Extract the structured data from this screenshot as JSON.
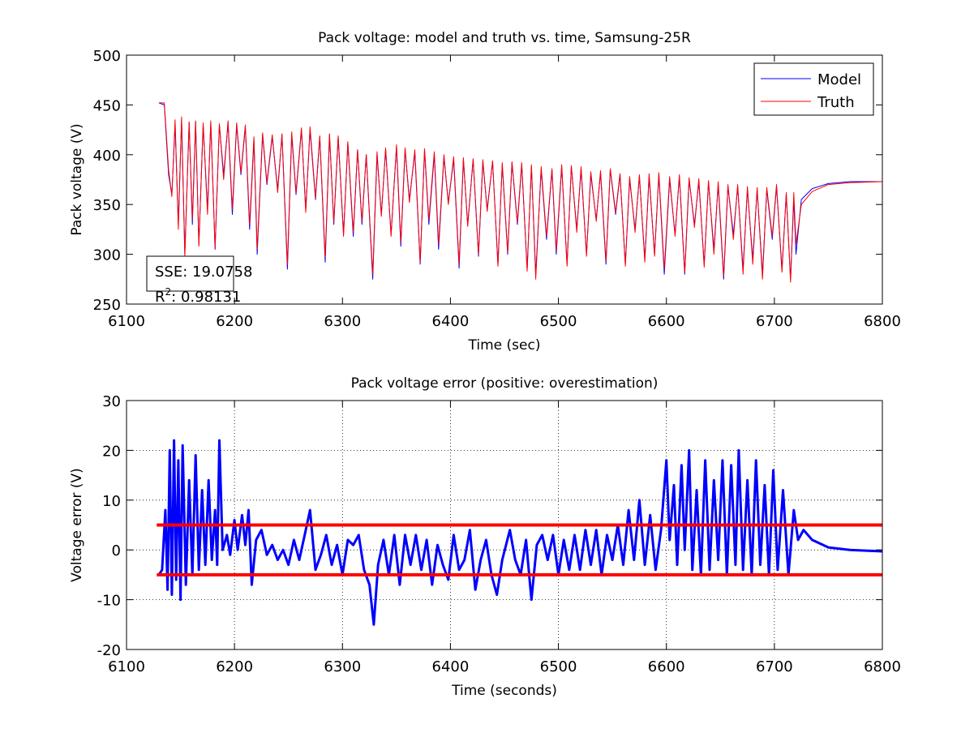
{
  "chart_data": [
    {
      "type": "line",
      "title": "Pack voltage: model and truth vs. time, Samsung-25R",
      "xlabel": "Time (sec)",
      "ylabel": "Pack voltage (V)",
      "xlim": [
        6100,
        6800
      ],
      "xticks": [
        6100,
        6200,
        6300,
        6400,
        6500,
        6600,
        6700,
        6800
      ],
      "ylim": [
        250,
        500
      ],
      "yticks": [
        250,
        300,
        350,
        400,
        450,
        500
      ],
      "grid": false,
      "legend": "upper right",
      "annotation": {
        "sse": "SSE: 19.0758",
        "r2_base": "R",
        "r2_sup": "2",
        "r2_rest": ": 0.98131"
      },
      "x": [
        6130,
        6135,
        6139,
        6142,
        6145,
        6148,
        6151,
        6154,
        6158,
        6161,
        6164,
        6167,
        6171,
        6175,
        6178,
        6182,
        6186,
        6190,
        6194,
        6198,
        6202,
        6206,
        6210,
        6214,
        6218,
        6221,
        6226,
        6230,
        6235,
        6240,
        6244,
        6249,
        6253,
        6257,
        6262,
        6266,
        6270,
        6275,
        6279,
        6284,
        6288,
        6292,
        6296,
        6301,
        6305,
        6310,
        6314,
        6318,
        6322,
        6328,
        6332,
        6336,
        6340,
        6345,
        6350,
        6354,
        6358,
        6362,
        6367,
        6372,
        6376,
        6380,
        6385,
        6389,
        6394,
        6398,
        6403,
        6408,
        6412,
        6416,
        6421,
        6426,
        6430,
        6434,
        6439,
        6444,
        6448,
        6453,
        6457,
        6462,
        6466,
        6471,
        6475,
        6479,
        6484,
        6489,
        6494,
        6498,
        6503,
        6508,
        6512,
        6517,
        6521,
        6526,
        6530,
        6535,
        6539,
        6544,
        6548,
        6553,
        6557,
        6562,
        6566,
        6571,
        6575,
        6580,
        6584,
        6589,
        6593,
        6598,
        6603,
        6608,
        6612,
        6617,
        6621,
        6626,
        6630,
        6635,
        6639,
        6644,
        6648,
        6653,
        6657,
        6662,
        6666,
        6671,
        6675,
        6680,
        6684,
        6689,
        6693,
        6698,
        6702,
        6707,
        6711,
        6715,
        6718,
        6720,
        6725,
        6735,
        6750,
        6770,
        6800
      ],
      "series": [
        {
          "name": "Model",
          "color": "#0000ff",
          "values": [
            452,
            450,
            380,
            360,
            430,
            330,
            435,
            300,
            432,
            330,
            433,
            310,
            430,
            345,
            432,
            305,
            430,
            380,
            432,
            340,
            430,
            380,
            428,
            325,
            415,
            300,
            420,
            370,
            418,
            365,
            420,
            285,
            420,
            360,
            425,
            345,
            425,
            355,
            418,
            292,
            420,
            330,
            418,
            320,
            412,
            318,
            405,
            330,
            400,
            275,
            400,
            340,
            405,
            320,
            408,
            308,
            405,
            355,
            402,
            290,
            405,
            330,
            400,
            305,
            398,
            352,
            395,
            286,
            395,
            330,
            395,
            298,
            393,
            345,
            393,
            290,
            390,
            300,
            392,
            330,
            390,
            285,
            388,
            280,
            385,
            315,
            385,
            300,
            388,
            290,
            388,
            325,
            385,
            300,
            380,
            335,
            382,
            290,
            385,
            340,
            380,
            290,
            375,
            325,
            378,
            295,
            378,
            300,
            380,
            280,
            375,
            320,
            378,
            280,
            375,
            330,
            373,
            290,
            372,
            305,
            370,
            275,
            368,
            320,
            368,
            285,
            365,
            295,
            365,
            280,
            365,
            315,
            368,
            285,
            360,
            275,
            355,
            300,
            355,
            366,
            371,
            373,
            373
          ]
        },
        {
          "name": "Truth",
          "color": "#ff0000",
          "values": [
            452,
            452,
            385,
            358,
            435,
            325,
            438,
            298,
            433,
            335,
            434,
            308,
            432,
            340,
            434,
            306,
            431,
            375,
            434,
            345,
            432,
            382,
            430,
            330,
            418,
            305,
            422,
            372,
            420,
            362,
            421,
            290,
            423,
            362,
            427,
            342,
            428,
            357,
            419,
            297,
            421,
            332,
            419,
            318,
            413,
            322,
            405,
            333,
            400,
            280,
            403,
            338,
            407,
            318,
            410,
            312,
            407,
            352,
            405,
            292,
            406,
            334,
            403,
            310,
            400,
            350,
            398,
            290,
            397,
            328,
            396,
            300,
            395,
            343,
            394,
            288,
            392,
            302,
            393,
            332,
            392,
            283,
            390,
            275,
            388,
            318,
            386,
            304,
            390,
            288,
            389,
            322,
            388,
            298,
            383,
            333,
            384,
            293,
            386,
            342,
            381,
            288,
            378,
            322,
            380,
            292,
            381,
            298,
            382,
            285,
            378,
            318,
            380,
            282,
            377,
            327,
            376,
            287,
            374,
            300,
            373,
            278,
            370,
            315,
            370,
            280,
            368,
            290,
            367,
            275,
            367,
            318,
            370,
            282,
            362,
            272,
            362,
            310,
            350,
            363,
            370,
            372,
            373
          ]
        }
      ]
    },
    {
      "type": "line",
      "title": "Pack voltage error (positive: overestimation)",
      "xlabel": "Time (seconds)",
      "ylabel": "Voltage error (V)",
      "xlim": [
        6100,
        6800
      ],
      "xticks": [
        6100,
        6200,
        6300,
        6400,
        6500,
        6600,
        6700,
        6800
      ],
      "ylim": [
        -20,
        30
      ],
      "yticks": [
        -20,
        -10,
        0,
        10,
        20,
        30
      ],
      "grid": true,
      "hlines": [
        5,
        -5
      ],
      "hline_color": "#ff0000",
      "hline_xrange": [
        6128,
        6800
      ],
      "x": [
        6130,
        6133,
        6136,
        6138,
        6140,
        6142,
        6144,
        6146,
        6148,
        6150,
        6152,
        6155,
        6158,
        6161,
        6164,
        6167,
        6170,
        6173,
        6176,
        6179,
        6182,
        6184,
        6186,
        6189,
        6193,
        6196,
        6200,
        6203,
        6207,
        6210,
        6213,
        6216,
        6220,
        6225,
        6230,
        6235,
        6240,
        6245,
        6250,
        6255,
        6260,
        6265,
        6270,
        6275,
        6280,
        6285,
        6290,
        6295,
        6300,
        6305,
        6310,
        6315,
        6320,
        6325,
        6329,
        6333,
        6338,
        6343,
        6348,
        6353,
        6358,
        6363,
        6368,
        6373,
        6378,
        6383,
        6388,
        6393,
        6398,
        6403,
        6408,
        6413,
        6418,
        6423,
        6428,
        6433,
        6438,
        6443,
        6448,
        6455,
        6460,
        6465,
        6470,
        6475,
        6480,
        6485,
        6490,
        6495,
        6500,
        6505,
        6510,
        6515,
        6520,
        6525,
        6530,
        6535,
        6540,
        6545,
        6550,
        6555,
        6560,
        6565,
        6570,
        6575,
        6580,
        6585,
        6590,
        6595,
        6600,
        6603,
        6607,
        6610,
        6614,
        6617,
        6621,
        6624,
        6628,
        6632,
        6636,
        6640,
        6644,
        6648,
        6652,
        6656,
        6660,
        6664,
        6667,
        6671,
        6675,
        6679,
        6683,
        6687,
        6691,
        6695,
        6699,
        6703,
        6708,
        6713,
        6718,
        6722,
        6727,
        6735,
        6750,
        6770,
        6800
      ],
      "series": [
        {
          "color": "#0000ff",
          "values": [
            -5,
            -4,
            8,
            -8,
            20,
            -9,
            22,
            -6,
            18,
            -10,
            21,
            -7,
            14,
            -5,
            19,
            -4,
            12,
            -3,
            14,
            -2,
            8,
            -3,
            22,
            0,
            3,
            -1,
            6,
            0,
            7,
            1,
            8,
            -7,
            2,
            4,
            -1,
            1,
            -2,
            0,
            -3,
            2,
            -2,
            3,
            8,
            -4,
            -1,
            3,
            -3,
            1,
            -5,
            2,
            1,
            3,
            -4,
            -7,
            -15,
            -3,
            2,
            -5,
            3,
            -7,
            3,
            -3,
            3,
            -4,
            2,
            -7,
            1,
            -3,
            -6,
            3,
            -4,
            -2,
            4,
            -8,
            -2,
            2,
            -5,
            -9,
            -2,
            4,
            -2,
            -5,
            2,
            -10,
            1,
            3,
            -2,
            3,
            -5,
            2,
            -4,
            3,
            -4,
            4,
            -3,
            4,
            -5,
            3,
            -2,
            5,
            -3,
            8,
            -2,
            10,
            -3,
            7,
            -4,
            4,
            18,
            2,
            13,
            -3,
            17,
            0,
            20,
            -4,
            12,
            -5,
            18,
            -4,
            14,
            -2,
            18,
            -5,
            17,
            -3,
            20,
            -4,
            14,
            -5,
            18,
            -3,
            13,
            -5,
            16,
            -4,
            12,
            -5,
            8,
            2,
            4,
            2,
            0.5,
            0,
            -0.3
          ]
        }
      ]
    }
  ]
}
